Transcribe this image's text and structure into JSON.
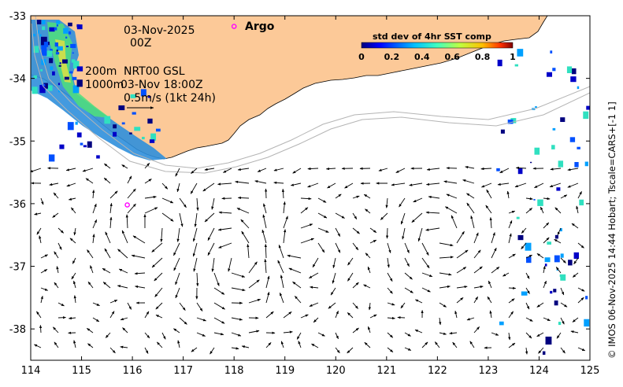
{
  "map": {
    "date_line": "03-Nov-2025",
    "time_line": "00Z",
    "depth_200": "200m",
    "depth_1000": "1000m",
    "product": "NRT00 GSL",
    "obs_time": "03-Nov 18:00Z",
    "scale_label": "0.5m/s (1kt 24h)",
    "argo_label": "Argo",
    "credit": "© IMOS 06-Nov-2025 14:44 Hobart; Tscale=CARS+[-1 1]",
    "colors": {
      "land": "#fcc998",
      "bathy": "#b4b4b4",
      "argo": "#ff00ff",
      "arrow": "#000000"
    }
  },
  "colorbar": {
    "title": "std dev of 4hr SST comp",
    "ticks": [
      "0",
      "0.2",
      "0.4",
      "0.6",
      "0.8",
      "1"
    ],
    "colormap": "jet",
    "range": [
      0,
      1
    ]
  },
  "axes": {
    "lon_ticks": [
      114,
      115,
      116,
      117,
      118,
      119,
      120,
      121,
      122,
      123,
      124,
      125
    ],
    "lat_ticks": [
      -33,
      -34,
      -35,
      -36,
      -37,
      -38
    ],
    "lon_range": [
      114,
      125
    ],
    "lat_range": [
      -38.5,
      -33
    ]
  },
  "argo_floats": [
    {
      "lon": 118.0,
      "lat": -33.17
    },
    {
      "lon": 115.9,
      "lat": -36.02
    }
  ]
}
